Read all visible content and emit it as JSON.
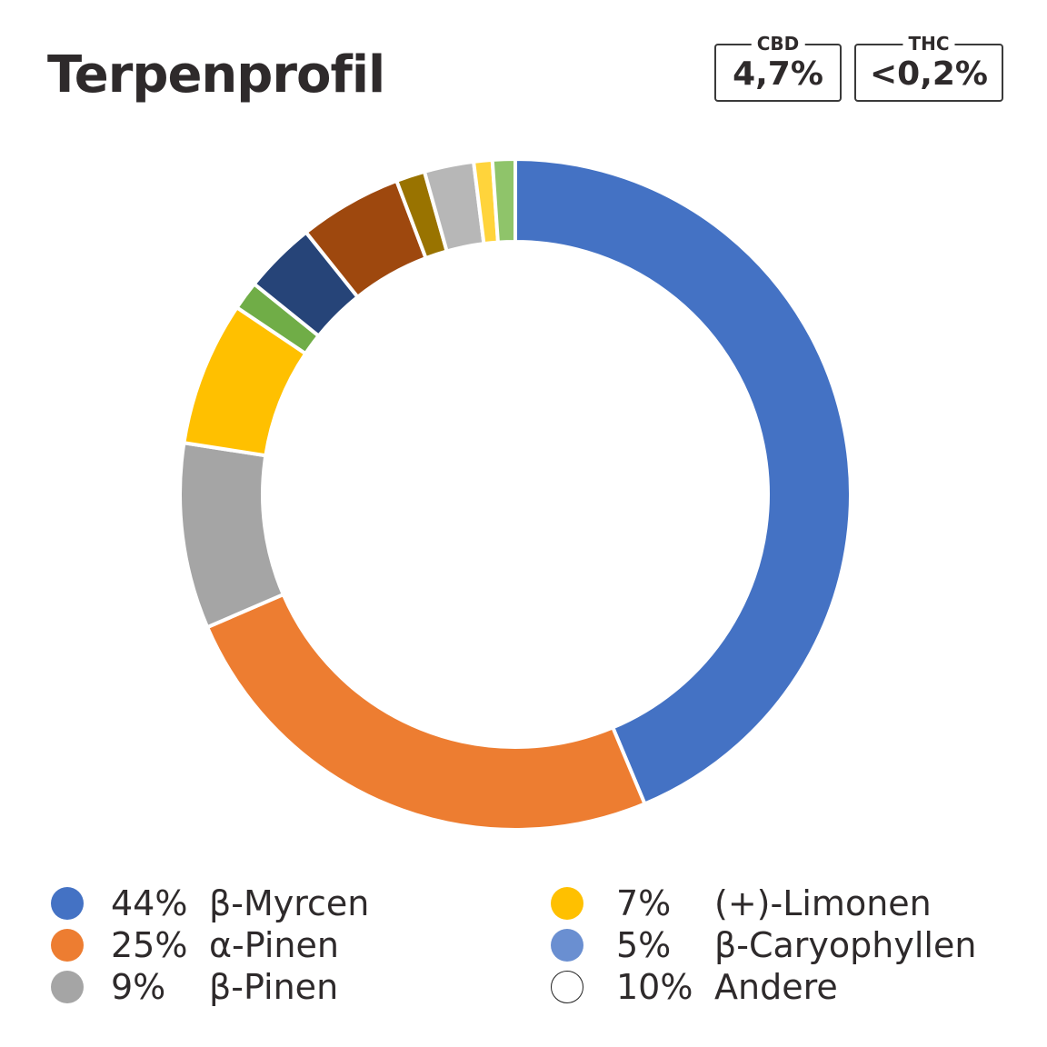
{
  "title": "Terpenprofil",
  "badges": [
    {
      "label": "CBD",
      "value": "4,7%"
    },
    {
      "label": "THC",
      "value": "<0,2%"
    }
  ],
  "legend": [
    {
      "pct": "44%",
      "name": "β-Myrcen",
      "color": "#4472c4"
    },
    {
      "pct": "25%",
      "name": "α-Pinen",
      "color": "#ed7d31"
    },
    {
      "pct": "9%",
      "name": "β-Pinen",
      "color": "#a5a5a5"
    },
    {
      "pct": "7%",
      "name": "(+)-Limonen",
      "color": "#ffc000"
    },
    {
      "pct": "5%",
      "name": "β-Caryophyllen",
      "color": "#6a8fd1"
    },
    {
      "pct": "10%",
      "name": "Andere",
      "color": "#ffffff"
    }
  ],
  "chart_data": {
    "type": "pie",
    "donut": true,
    "slices": [
      {
        "value": 44,
        "color": "#4472c4"
      },
      {
        "value": 25,
        "color": "#ed7d31"
      },
      {
        "value": 9,
        "color": "#a5a5a5"
      },
      {
        "value": 7,
        "color": "#ffc000"
      },
      {
        "value": 1.4,
        "color": "#70ad47"
      },
      {
        "value": 3.5,
        "color": "#264478"
      },
      {
        "value": 5,
        "color": "#9e480e"
      },
      {
        "value": 1.4,
        "color": "#997300"
      },
      {
        "value": 2.4,
        "color": "#b7b7b7"
      },
      {
        "value": 0.9,
        "color": "#ffd43b"
      },
      {
        "value": 1.1,
        "color": "#8fc46a"
      }
    ]
  }
}
